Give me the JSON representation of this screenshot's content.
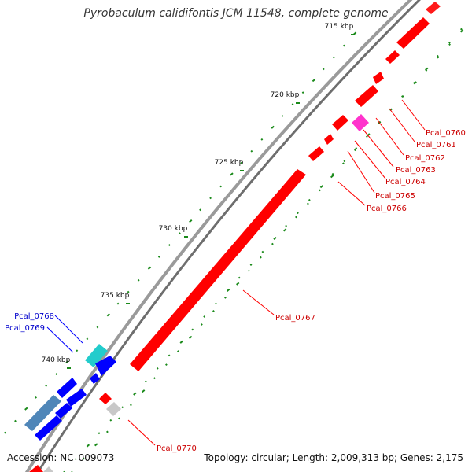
{
  "title": "Pyrobaculum calidifontis JCM 11548, complete genome",
  "footer": {
    "accession": "Accession: NC_009073",
    "summary": "Topology: circular; Length: 2,009,313 bp; Genes: 2,175"
  },
  "ticks": [
    "715 kbp",
    "720 kbp",
    "725 kbp",
    "730 kbp",
    "735 kbp",
    "740 kbp"
  ],
  "genes": {
    "forward": [
      "Pcal_0760",
      "Pcal_0761",
      "Pcal_0762",
      "Pcal_0763",
      "Pcal_0764",
      "Pcal_0765",
      "Pcal_0766",
      "Pcal_0767",
      "Pcal_0770"
    ],
    "reverse": [
      "Pcal_0768",
      "Pcal_0769"
    ]
  },
  "colors": {
    "forward_gene": "#ff0000",
    "reverse_gene": "#0000ff",
    "highlight_magenta": "#ff33cc",
    "highlight_cyan": "#22cccc",
    "steel_blue": "#4f86b8",
    "neutral_gene": "#c8c8c8",
    "backbone": "#888888",
    "tick_dash": "#1a8a1a",
    "forward_label": "#cc0000",
    "reverse_label": "#0000cc"
  }
}
